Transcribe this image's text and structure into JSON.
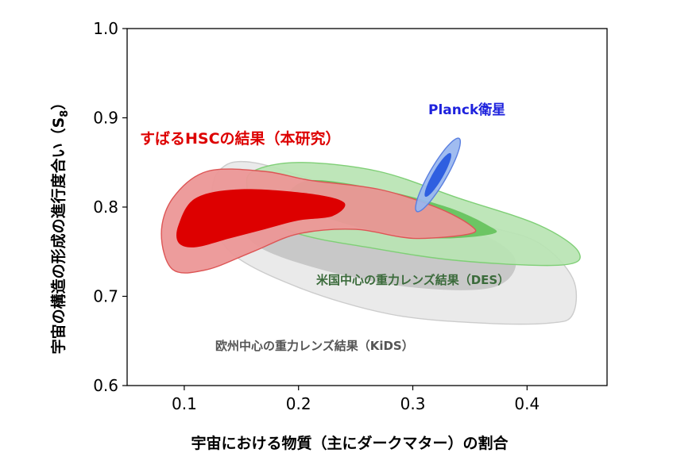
{
  "chart_data": {
    "type": "contour",
    "xlabel": "宇宙における物質（主にダークマター）の割合",
    "ylabel": "宇宙の構造の形成の進行度合い（S",
    "ylabel_subscript": "8",
    "ylabel_close": "）",
    "xlim": [
      0.05,
      0.47
    ],
    "ylim": [
      0.6,
      1.0
    ],
    "xticks": [
      0.1,
      0.2,
      0.3,
      0.4
    ],
    "yticks": [
      0.6,
      0.7,
      0.8,
      0.9,
      1.0
    ],
    "xtick_labels": [
      "0.1",
      "0.2",
      "0.3",
      "0.4"
    ],
    "ytick_labels": [
      "0.6",
      "0.7",
      "0.8",
      "0.9",
      "1.0"
    ],
    "series": [
      {
        "name": "欧州中心の重力レンズ結果（KiDS）",
        "color_outer": "#e8e8e8",
        "color_inner": "#c8c8c8",
        "stroke": "#cccccc",
        "label_color": "#555555",
        "outer": [
          [
            0.125,
            0.8
          ],
          [
            0.13,
            0.84
          ],
          [
            0.16,
            0.85
          ],
          [
            0.24,
            0.82
          ],
          [
            0.36,
            0.78
          ],
          [
            0.41,
            0.76
          ],
          [
            0.44,
            0.72
          ],
          [
            0.44,
            0.68
          ],
          [
            0.42,
            0.67
          ],
          [
            0.36,
            0.67
          ],
          [
            0.28,
            0.68
          ],
          [
            0.2,
            0.71
          ],
          [
            0.14,
            0.75
          ]
        ],
        "inner": [
          [
            0.155,
            0.8
          ],
          [
            0.17,
            0.84
          ],
          [
            0.21,
            0.82
          ],
          [
            0.3,
            0.79
          ],
          [
            0.36,
            0.77
          ],
          [
            0.39,
            0.74
          ],
          [
            0.37,
            0.71
          ],
          [
            0.3,
            0.71
          ],
          [
            0.22,
            0.73
          ],
          [
            0.16,
            0.76
          ]
        ]
      },
      {
        "name": "米国中心の重力レンズ結果（DES）",
        "color_outer": "#b9e4b3",
        "color_inner": "#6cc563",
        "stroke": "#7fcf76",
        "label_color": "#3b6b3b",
        "outer": [
          [
            0.155,
            0.82
          ],
          [
            0.16,
            0.84
          ],
          [
            0.2,
            0.85
          ],
          [
            0.27,
            0.84
          ],
          [
            0.34,
            0.81
          ],
          [
            0.41,
            0.78
          ],
          [
            0.445,
            0.75
          ],
          [
            0.43,
            0.735
          ],
          [
            0.34,
            0.74
          ],
          [
            0.26,
            0.755
          ],
          [
            0.2,
            0.77
          ],
          [
            0.16,
            0.795
          ]
        ],
        "inner": [
          [
            0.19,
            0.81
          ],
          [
            0.21,
            0.83
          ],
          [
            0.27,
            0.82
          ],
          [
            0.33,
            0.8
          ],
          [
            0.365,
            0.78
          ],
          [
            0.37,
            0.77
          ],
          [
            0.32,
            0.765
          ],
          [
            0.26,
            0.775
          ],
          [
            0.21,
            0.795
          ]
        ]
      },
      {
        "name": "すばるHSCの結果（本研究）",
        "color_outer": "#ec9797",
        "color_inner": "#dd0000",
        "stroke": "#dd5555",
        "label_color": "#dd0000",
        "outer": [
          [
            0.08,
            0.77
          ],
          [
            0.09,
            0.81
          ],
          [
            0.12,
            0.84
          ],
          [
            0.17,
            0.84
          ],
          [
            0.21,
            0.83
          ],
          [
            0.27,
            0.82
          ],
          [
            0.32,
            0.8
          ],
          [
            0.35,
            0.78
          ],
          [
            0.35,
            0.77
          ],
          [
            0.3,
            0.765
          ],
          [
            0.25,
            0.775
          ],
          [
            0.2,
            0.77
          ],
          [
            0.16,
            0.75
          ],
          [
            0.12,
            0.73
          ],
          [
            0.09,
            0.73
          ]
        ],
        "inner": [
          [
            0.095,
            0.78
          ],
          [
            0.11,
            0.81
          ],
          [
            0.15,
            0.82
          ],
          [
            0.21,
            0.815
          ],
          [
            0.24,
            0.805
          ],
          [
            0.23,
            0.79
          ],
          [
            0.2,
            0.785
          ],
          [
            0.17,
            0.775
          ],
          [
            0.14,
            0.765
          ],
          [
            0.11,
            0.755
          ],
          [
            0.095,
            0.76
          ]
        ]
      },
      {
        "name": "Planck衛星",
        "color_outer": "#98b6ef",
        "color_inner": "#2f5fe0",
        "stroke": "#5a7fe0",
        "label_color": "#1e22dd",
        "outer_ellipse": {
          "cx": 0.322,
          "cy": 0.836,
          "a": 0.037,
          "b": 0.0075,
          "angle_deg": -60
        },
        "inner_ellipse": {
          "cx": 0.322,
          "cy": 0.836,
          "a": 0.022,
          "b": 0.0045,
          "angle_deg": -60
        }
      }
    ],
    "annotations": [
      {
        "text": "すばるHSCの結果（本研究）",
        "color": "#dd0000"
      },
      {
        "text": "Planck衛星",
        "color": "#1e22dd"
      },
      {
        "text": "米国中心の重力レンズ結果（DES）",
        "color": "#3b6b3b"
      },
      {
        "text": "欧州中心の重力レンズ結果（KiDS）",
        "color": "#555555"
      }
    ]
  }
}
